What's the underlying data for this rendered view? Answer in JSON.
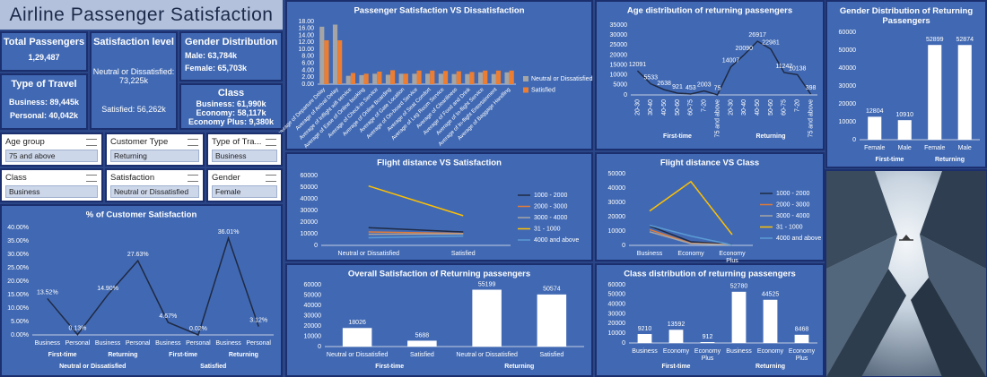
{
  "header": {
    "title": "Airline Passenger Satisfaction"
  },
  "kpis": [
    {
      "title": "Total Passengers",
      "lines": [
        "1,29,487"
      ]
    },
    {
      "title": "Type of Travel",
      "lines": [
        "Business: 89,445k",
        "Personal: 40,042k"
      ]
    },
    {
      "title": "Satisfaction level",
      "lines": [
        "Neutral or Dissatisfied:  73,225k",
        "Satisfied:  56,262k"
      ]
    },
    {
      "title": "Gender Distribution",
      "lines": [
        "Male: 63,784k",
        "Female: 65,703k"
      ]
    },
    {
      "title": "Class",
      "lines": [
        "Business: 61,990k",
        "Economy: 58,117k",
        "Economy Plus: 9,380k"
      ]
    }
  ],
  "slicers": [
    {
      "label": "Age group",
      "selected": "75 and above"
    },
    {
      "label": "Customer Type",
      "selected": "Returning"
    },
    {
      "label": "Type of Tra...",
      "selected": "Business"
    },
    {
      "label": "Class",
      "selected": "Business"
    },
    {
      "label": "Satisfaction",
      "selected": "Neutral or Dissatisfied"
    },
    {
      "label": "Gender",
      "selected": "Female"
    }
  ],
  "chart_data": [
    {
      "type": "bar",
      "title": "Passenger Satisfaction VS Dissatisfaction",
      "legend": "right",
      "categories": [
        "Average of Departure Delay",
        "Average of Arrival Delay",
        "Average of Inflight wifi service",
        "Average of Ease of Online booking",
        "Average of Check-in Service",
        "Average of Online Boarding",
        "Average of Gate Location",
        "Average of On-board Service",
        "Average of Seat Comfort",
        "Average of Leg Room Service",
        "Average of Cleanliness",
        "Average of Food and Drink",
        "Average of In-flight Service",
        "Average of In-flight Entertainment",
        "Average of Baggage Handling"
      ],
      "series": [
        {
          "name": "Neutral or Dissatisfied",
          "color": "#a5a5a5",
          "values": [
            16.5,
            17.1,
            2.4,
            2.6,
            3.0,
            2.7,
            3.0,
            3.0,
            3.0,
            3.0,
            2.9,
            2.9,
            3.4,
            2.9,
            3.4
          ]
        },
        {
          "name": "Satisfied",
          "color": "#ed7d31",
          "values": [
            12.6,
            12.6,
            3.2,
            3.0,
            3.6,
            4.0,
            3.0,
            3.9,
            3.9,
            3.8,
            3.7,
            3.5,
            3.9,
            3.9,
            3.9
          ]
        }
      ],
      "ylim": [
        0,
        18
      ],
      "yticks": [
        {
          "value": 0,
          "label": "0.00"
        },
        {
          "value": 2,
          "label": "2.00"
        },
        {
          "value": 4,
          "label": "4.00"
        },
        {
          "value": 6,
          "label": "6.00"
        },
        {
          "value": 8,
          "label": "8.00"
        },
        {
          "value": 10,
          "label": "10.00"
        },
        {
          "value": 12,
          "label": "12.00"
        },
        {
          "value": 14,
          "label": "14.00"
        },
        {
          "value": 16,
          "label": "16.00"
        },
        {
          "value": 18,
          "label": "18.00"
        }
      ]
    },
    {
      "type": "line",
      "title": "Age distribution of returning passengers",
      "color": "#1f2a44",
      "data_labels": true,
      "groups": [
        {
          "name": "First-time",
          "categories": [
            "20-30",
            "30-40",
            "40-50",
            "50-60",
            "60-75",
            "7-20",
            "75 and above"
          ],
          "values": [
            12091,
            5533,
            2638,
            921,
            453,
            2003,
            75
          ]
        },
        {
          "name": "Returning",
          "categories": [
            "20-30",
            "30-40",
            "40-50",
            "50-60",
            "60-75",
            "7-20",
            "75 and above"
          ],
          "values": [
            14007,
            20090,
            26917,
            22981,
            11242,
            10138,
            398
          ]
        }
      ],
      "ylim": [
        0,
        35000
      ],
      "yticks": [
        0,
        5000,
        10000,
        15000,
        20000,
        25000,
        30000,
        35000
      ]
    },
    {
      "type": "bar",
      "title": "Gender Distribution of Returning Passengers",
      "color": "#ffffff",
      "data_labels": true,
      "groups": [
        {
          "name": "First-time",
          "categories": [
            "Female",
            "Male"
          ],
          "values": [
            12804,
            10910
          ]
        },
        {
          "name": "Returning",
          "categories": [
            "Female",
            "Male"
          ],
          "values": [
            52899,
            52874
          ]
        }
      ],
      "ylim": [
        0,
        60000
      ],
      "yticks": [
        0,
        10000,
        20000,
        30000,
        40000,
        50000,
        60000
      ]
    },
    {
      "type": "line",
      "title": "Flight distance VS Satisfaction",
      "legend": "right",
      "categories": [
        "Neutral or Dissatisfied",
        "Satisfied"
      ],
      "series": [
        {
          "name": "1000 - 2000",
          "color": "#1f2a44",
          "values": [
            15200,
            11500
          ]
        },
        {
          "name": "2000 - 3000",
          "color": "#e07b39",
          "values": [
            11500,
            10200
          ]
        },
        {
          "name": "3000 - 4000",
          "color": "#a5a5a5",
          "values": [
            9500,
            9800
          ]
        },
        {
          "name": "31 - 1000",
          "color": "#ffc000",
          "values": [
            51000,
            25500
          ]
        },
        {
          "name": "4000 and above",
          "color": "#5b9bd5",
          "values": [
            6500,
            8000
          ]
        }
      ],
      "ylim": [
        0,
        60000
      ],
      "yticks": [
        0,
        10000,
        20000,
        30000,
        40000,
        50000,
        60000
      ]
    },
    {
      "type": "line",
      "title": "Flight distance VS Class",
      "legend": "right",
      "categories": [
        "Business",
        "Economy",
        "Economy Plus"
      ],
      "series": [
        {
          "name": "1000 - 2000",
          "color": "#1f2a44",
          "values": [
            13500,
            2500,
            800
          ]
        },
        {
          "name": "2000 - 3000",
          "color": "#e07b39",
          "values": [
            11000,
            1500,
            500
          ]
        },
        {
          "name": "3000 - 4000",
          "color": "#a5a5a5",
          "values": [
            9500,
            1200,
            400
          ]
        },
        {
          "name": "31 - 1000",
          "color": "#ffc000",
          "values": [
            24000,
            44500,
            7500
          ]
        },
        {
          "name": "4000 and above",
          "color": "#5b9bd5",
          "values": [
            14000,
            6500,
            300
          ]
        }
      ],
      "ylim": [
        0,
        50000
      ],
      "yticks": [
        0,
        10000,
        20000,
        30000,
        40000,
        50000
      ]
    },
    {
      "type": "bar",
      "title": "Overall Satisfaction of Returning passengers",
      "color": "#ffffff",
      "data_labels": true,
      "groups": [
        {
          "name": "First-time",
          "categories": [
            "Neutral or Dissatisfied",
            "Satisfied"
          ],
          "values": [
            18026,
            5688
          ]
        },
        {
          "name": "Returning",
          "categories": [
            "Neutral or Dissatisfied",
            "Satisfied"
          ],
          "values": [
            55199,
            50574
          ]
        }
      ],
      "ylim": [
        0,
        60000
      ],
      "yticks": [
        0,
        10000,
        20000,
        30000,
        40000,
        50000,
        60000
      ]
    },
    {
      "type": "bar",
      "title": "Class distribution of returning passengers",
      "color": "#ffffff",
      "data_labels": true,
      "groups": [
        {
          "name": "First-time",
          "categories": [
            "Business",
            "Economy",
            "Economy Plus"
          ],
          "values": [
            9210,
            13592,
            912
          ]
        },
        {
          "name": "Returning",
          "categories": [
            "Business",
            "Economy",
            "Economy Plus"
          ],
          "values": [
            52780,
            44525,
            8468
          ]
        }
      ],
      "ylim": [
        0,
        60000
      ],
      "yticks": [
        0,
        10000,
        20000,
        30000,
        40000,
        50000,
        60000
      ]
    },
    {
      "type": "line",
      "title": "% of Customer Satisfaction",
      "color": "#1f2a44",
      "data_labels": true,
      "groups": [
        {
          "name": "Neutral or Dissatisfied",
          "groups": [
            {
              "name": "First-time",
              "categories": [
                "Business",
                "Personal"
              ],
              "values": [
                13.52,
                0.13
              ],
              "value_labels": [
                "13.52%",
                "0.13%"
              ]
            },
            {
              "name": "Returning",
              "categories": [
                "Business",
                "Personal"
              ],
              "values": [
                14.9,
                27.63
              ],
              "value_labels": [
                "14.90%",
                "27.63%"
              ]
            }
          ]
        },
        {
          "name": "Satisfied",
          "groups": [
            {
              "name": "First-time",
              "categories": [
                "Business",
                "Personal"
              ],
              "values": [
                4.67,
                0.02
              ],
              "value_labels": [
                "4.67%",
                "0.02%"
              ]
            },
            {
              "name": "Returning",
              "categories": [
                "Business",
                "Personal"
              ],
              "values": [
                36.01,
                3.12
              ],
              "value_labels": [
                "36.01%",
                "3.12%"
              ]
            }
          ]
        }
      ],
      "ylim": [
        0,
        40
      ],
      "yticks": [
        {
          "value": 0,
          "label": "0.00%"
        },
        {
          "value": 5,
          "label": "5.00%"
        },
        {
          "value": 10,
          "label": "10.00%"
        },
        {
          "value": 15,
          "label": "15.00%"
        },
        {
          "value": 20,
          "label": "20.00%"
        },
        {
          "value": 25,
          "label": "25.00%"
        },
        {
          "value": 30,
          "label": "30.00%"
        },
        {
          "value": 35,
          "label": "35.00%"
        },
        {
          "value": 40,
          "label": "40.00%"
        }
      ]
    }
  ]
}
